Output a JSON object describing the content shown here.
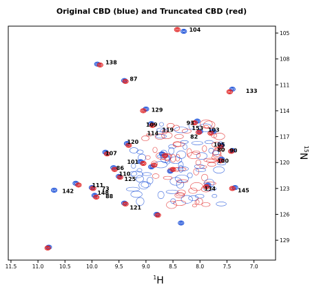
{
  "chart_data": {
    "type": "scatter",
    "title": "Original CBD (blue) and Truncated CBD (red)",
    "xlabel": "1H",
    "ylabel": "15N",
    "xlim": [
      11.55,
      6.6
    ],
    "ylim": [
      104.2,
      131.3
    ],
    "x_ticks": [
      11.5,
      11.0,
      10.5,
      10.0,
      9.5,
      9.0,
      8.5,
      8.0,
      7.5,
      7.0
    ],
    "y_ticks": [
      105,
      108,
      111,
      114,
      117,
      120,
      123,
      126,
      129
    ],
    "grid": false,
    "legend": "none",
    "colors": {
      "original": "#1a4fd8",
      "truncated": "#e02020"
    },
    "series": [
      {
        "key": "original",
        "points": [
          [
            8.3,
            104.8
          ],
          [
            9.9,
            108.6
          ],
          [
            9.4,
            110.5
          ],
          [
            7.4,
            111.5
          ],
          [
            9.0,
            113.8
          ],
          [
            8.9,
            115.5
          ],
          [
            8.05,
            115.2
          ],
          [
            8.0,
            116.4
          ],
          [
            7.75,
            116.4
          ],
          [
            9.35,
            117.8
          ],
          [
            7.6,
            118.0
          ],
          [
            7.4,
            118.6
          ],
          [
            9.75,
            118.8
          ],
          [
            9.1,
            119.9
          ],
          [
            7.6,
            119.6
          ],
          [
            9.6,
            120.6
          ],
          [
            9.5,
            121.6
          ],
          [
            10.3,
            122.4
          ],
          [
            7.85,
            122.6
          ],
          [
            7.35,
            122.9
          ],
          [
            10.7,
            123.2
          ],
          [
            10.0,
            122.9
          ],
          [
            9.95,
            123.8
          ],
          [
            9.4,
            124.7
          ],
          [
            8.8,
            126.0
          ],
          [
            10.8,
            129.8
          ],
          [
            8.35,
            127.0
          ],
          [
            8.55,
            121.0
          ],
          [
            8.9,
            120.5
          ],
          [
            8.7,
            119.0
          ]
        ]
      },
      {
        "key": "truncated",
        "points": [
          [
            8.42,
            104.6
          ],
          [
            9.85,
            108.7
          ],
          [
            9.38,
            110.6
          ],
          [
            7.45,
            111.8
          ],
          [
            9.05,
            114.0
          ],
          [
            8.88,
            115.7
          ],
          [
            8.1,
            115.4
          ],
          [
            8.02,
            116.5
          ],
          [
            7.8,
            116.6
          ],
          [
            9.32,
            118.0
          ],
          [
            7.62,
            118.2
          ],
          [
            7.42,
            118.7
          ],
          [
            9.72,
            119.0
          ],
          [
            9.05,
            120.1
          ],
          [
            7.62,
            119.8
          ],
          [
            9.58,
            120.8
          ],
          [
            9.48,
            121.7
          ],
          [
            10.25,
            122.6
          ],
          [
            7.88,
            122.8
          ],
          [
            7.4,
            123.0
          ],
          [
            9.98,
            123.0
          ],
          [
            9.92,
            124.0
          ],
          [
            9.38,
            124.8
          ],
          [
            8.78,
            126.1
          ],
          [
            10.82,
            129.9
          ],
          [
            8.5,
            120.8
          ],
          [
            8.85,
            120.3
          ],
          [
            8.65,
            119.2
          ]
        ]
      }
    ],
    "peak_labels": [
      {
        "text": "104",
        "x": 8.2,
        "y": 104.6
      },
      {
        "text": "138",
        "x": 9.75,
        "y": 108.4
      },
      {
        "text": "87",
        "x": 9.3,
        "y": 110.3
      },
      {
        "text": "133",
        "x": 7.15,
        "y": 111.7
      },
      {
        "text": "129",
        "x": 8.9,
        "y": 113.9
      },
      {
        "text": "109",
        "x": 9.0,
        "y": 115.6
      },
      {
        "text": "93",
        "x": 8.25,
        "y": 115.4
      },
      {
        "text": "153",
        "x": 8.15,
        "y": 116.0
      },
      {
        "text": "103",
        "x": 7.85,
        "y": 116.2
      },
      {
        "text": "114",
        "x": 8.98,
        "y": 116.6
      },
      {
        "text": "119",
        "x": 8.7,
        "y": 116.2
      },
      {
        "text": "82",
        "x": 8.18,
        "y": 117.0
      },
      {
        "text": "120",
        "x": 9.35,
        "y": 117.6
      },
      {
        "text": "105",
        "x": 7.75,
        "y": 117.9
      },
      {
        "text": "80",
        "x": 7.68,
        "y": 118.5
      },
      {
        "text": "90",
        "x": 7.45,
        "y": 118.6
      },
      {
        "text": "107",
        "x": 9.75,
        "y": 118.9
      },
      {
        "text": "101",
        "x": 9.35,
        "y": 119.9
      },
      {
        "text": "100",
        "x": 7.68,
        "y": 119.8
      },
      {
        "text": "86",
        "x": 9.55,
        "y": 120.6
      },
      {
        "text": "110",
        "x": 9.5,
        "y": 121.3
      },
      {
        "text": "125",
        "x": 9.4,
        "y": 121.9
      },
      {
        "text": "111",
        "x": 10.0,
        "y": 122.6
      },
      {
        "text": "73",
        "x": 9.82,
        "y": 123.0
      },
      {
        "text": "148",
        "x": 9.9,
        "y": 123.5
      },
      {
        "text": "134",
        "x": 7.92,
        "y": 123.0
      },
      {
        "text": "145",
        "x": 7.3,
        "y": 123.2
      },
      {
        "text": "142",
        "x": 10.55,
        "y": 123.3
      },
      {
        "text": "88",
        "x": 9.75,
        "y": 123.9
      },
      {
        "text": "121",
        "x": 9.3,
        "y": 125.2
      }
    ]
  }
}
